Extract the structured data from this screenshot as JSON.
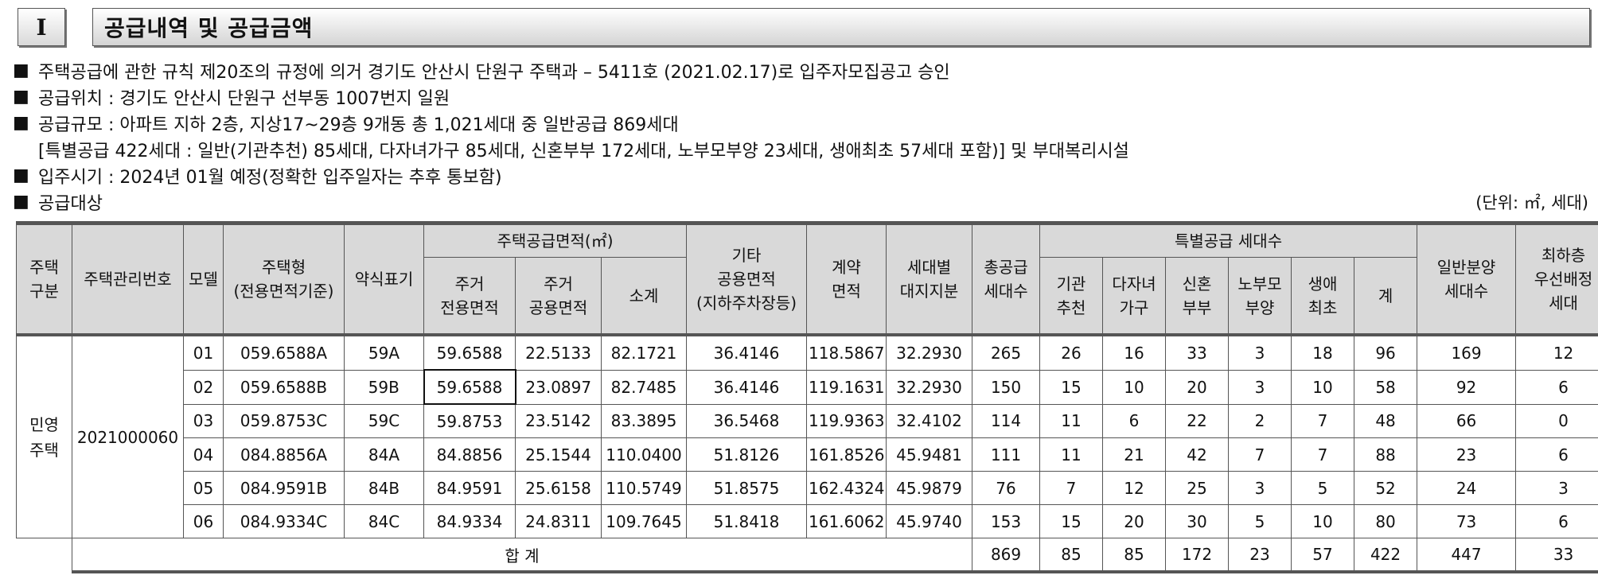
{
  "section": {
    "number": "I",
    "title": "공급내역 및 공급금액"
  },
  "notes": {
    "bullet": "■",
    "line1": "주택공급에 관한 규칙 제20조의 규정에 의거 경기도 안산시 단원구 주택과 – 5411호 (2021.02.17)로 입주자모집공고 승인",
    "line2": "공급위치 : 경기도 안산시 단원구 선부동 1007번지 일원",
    "line3": "공급규모 : 아파트 지하 2층, 지상17~29층 9개동 총 1,021세대 중 일반공급 869세대",
    "line3b": "[특별공급 422세대 : 일반(기관추천) 85세대, 다자녀가구 85세대, 신혼부부 172세대, 노부모부양 23세대, 생애최초 57세대 포함)] 및 부대복리시설",
    "line4": "입주시기 : 2024년 01월 예정(정확한 입주일자는 추후 통보함)",
    "line5": "공급대상",
    "unit": "(단위: ㎡, 세대)"
  },
  "table": {
    "headers": {
      "housing_type": "주택\n구분",
      "mgmt_no": "주택관리번호",
      "model": "모델",
      "house_type": "주택형\n(전용면적기준)",
      "abbr": "약식표기",
      "supply_area": "주택공급면적(㎡)",
      "exclusive": "주거\n전용면적",
      "common": "주거\n공용면적",
      "subtotal": "소계",
      "other_common": "기타\n공용면적\n(지하주차장등)",
      "contract_area": "계약\n면적",
      "land_share": "세대별\n대지지분",
      "total_units": "총공급\n세대수",
      "special_units": "특별공급 세대수",
      "institution": "기관\n추천",
      "multichild": "다자녀\n가구",
      "newlywed": "신혼\n부부",
      "elderly": "노부모\n부양",
      "firsttime": "생애\n최초",
      "sum": "계",
      "general_units": "일반분양\n세대수",
      "lowest_floor": "최하층\n우선배정\n세대"
    },
    "group": {
      "type": "민영\n주택",
      "mgmt_no": "2021000060"
    },
    "rows": [
      {
        "model": "01",
        "house_type": "059.6588A",
        "abbr": "59A",
        "exclusive": "59.6588",
        "common": "22.5133",
        "subtotal": "82.1721",
        "other_common": "36.4146",
        "contract_area": "118.5867",
        "land_share": "32.2930",
        "total": "265",
        "institution": "26",
        "multichild": "16",
        "newlywed": "33",
        "elderly": "3",
        "firsttime": "18",
        "sum": "96",
        "general": "169",
        "lowest": "12"
      },
      {
        "model": "02",
        "house_type": "059.6588B",
        "abbr": "59B",
        "exclusive": "59.6588",
        "common": "23.0897",
        "subtotal": "82.7485",
        "other_common": "36.4146",
        "contract_area": "119.1631",
        "land_share": "32.2930",
        "total": "150",
        "institution": "15",
        "multichild": "10",
        "newlywed": "20",
        "elderly": "3",
        "firsttime": "10",
        "sum": "58",
        "general": "92",
        "lowest": "6"
      },
      {
        "model": "03",
        "house_type": "059.8753C",
        "abbr": "59C",
        "exclusive": "59.8753",
        "common": "23.5142",
        "subtotal": "83.3895",
        "other_common": "36.5468",
        "contract_area": "119.9363",
        "land_share": "32.4102",
        "total": "114",
        "institution": "11",
        "multichild": "6",
        "newlywed": "22",
        "elderly": "2",
        "firsttime": "7",
        "sum": "48",
        "general": "66",
        "lowest": "0"
      },
      {
        "model": "04",
        "house_type": "084.8856A",
        "abbr": "84A",
        "exclusive": "84.8856",
        "common": "25.1544",
        "subtotal": "110.0400",
        "other_common": "51.8126",
        "contract_area": "161.8526",
        "land_share": "45.9481",
        "total": "111",
        "institution": "11",
        "multichild": "21",
        "newlywed": "42",
        "elderly": "7",
        "firsttime": "7",
        "sum": "88",
        "general": "23",
        "lowest": "6"
      },
      {
        "model": "05",
        "house_type": "084.9591B",
        "abbr": "84B",
        "exclusive": "84.9591",
        "common": "25.6158",
        "subtotal": "110.5749",
        "other_common": "51.8575",
        "contract_area": "162.4324",
        "land_share": "45.9879",
        "total": "76",
        "institution": "7",
        "multichild": "12",
        "newlywed": "25",
        "elderly": "3",
        "firsttime": "5",
        "sum": "52",
        "general": "24",
        "lowest": "3"
      },
      {
        "model": "06",
        "house_type": "084.9334C",
        "abbr": "84C",
        "exclusive": "84.9334",
        "common": "24.8311",
        "subtotal": "109.7645",
        "other_common": "51.8418",
        "contract_area": "161.6062",
        "land_share": "45.9740",
        "total": "153",
        "institution": "15",
        "multichild": "20",
        "newlywed": "30",
        "elderly": "5",
        "firsttime": "10",
        "sum": "80",
        "general": "73",
        "lowest": "6"
      }
    ],
    "total": {
      "label": "합 계",
      "total": "869",
      "institution": "85",
      "multichild": "85",
      "newlywed": "172",
      "elderly": "23",
      "firsttime": "57",
      "sum": "422",
      "general": "447",
      "lowest": "33"
    }
  }
}
